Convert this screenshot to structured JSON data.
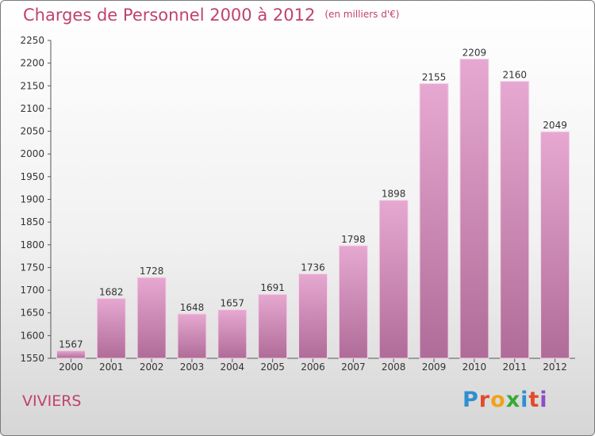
{
  "header": {
    "title": "Charges de Personnel 2000 à 2012",
    "subtitle": "(en milliers d'€)"
  },
  "footer": {
    "location": "VIVIERS",
    "logo_letters": [
      "P",
      "r",
      "o",
      "x",
      "i",
      "t",
      "i"
    ]
  },
  "colors": {
    "title": "#c1416f",
    "bar_top": "#e6a8d1",
    "bar_bottom": "#b06c98",
    "axis": "#555555"
  },
  "chart_data": {
    "type": "bar",
    "title": "Charges de Personnel 2000 à 2012",
    "subtitle": "(en milliers d'€)",
    "categories": [
      "2000",
      "2001",
      "2002",
      "2003",
      "2004",
      "2005",
      "2006",
      "2007",
      "2008",
      "2009",
      "2010",
      "2011",
      "2012"
    ],
    "values": [
      1567,
      1682,
      1728,
      1648,
      1657,
      1691,
      1736,
      1798,
      1898,
      2155,
      2209,
      2160,
      2049
    ],
    "ylim": [
      1550,
      2250
    ],
    "yticks": [
      1550,
      1600,
      1650,
      1700,
      1750,
      1800,
      1850,
      1900,
      1950,
      2000,
      2050,
      2100,
      2150,
      2200,
      2250
    ],
    "xlabel": "",
    "ylabel": "",
    "grid": false,
    "data_labels": true
  }
}
